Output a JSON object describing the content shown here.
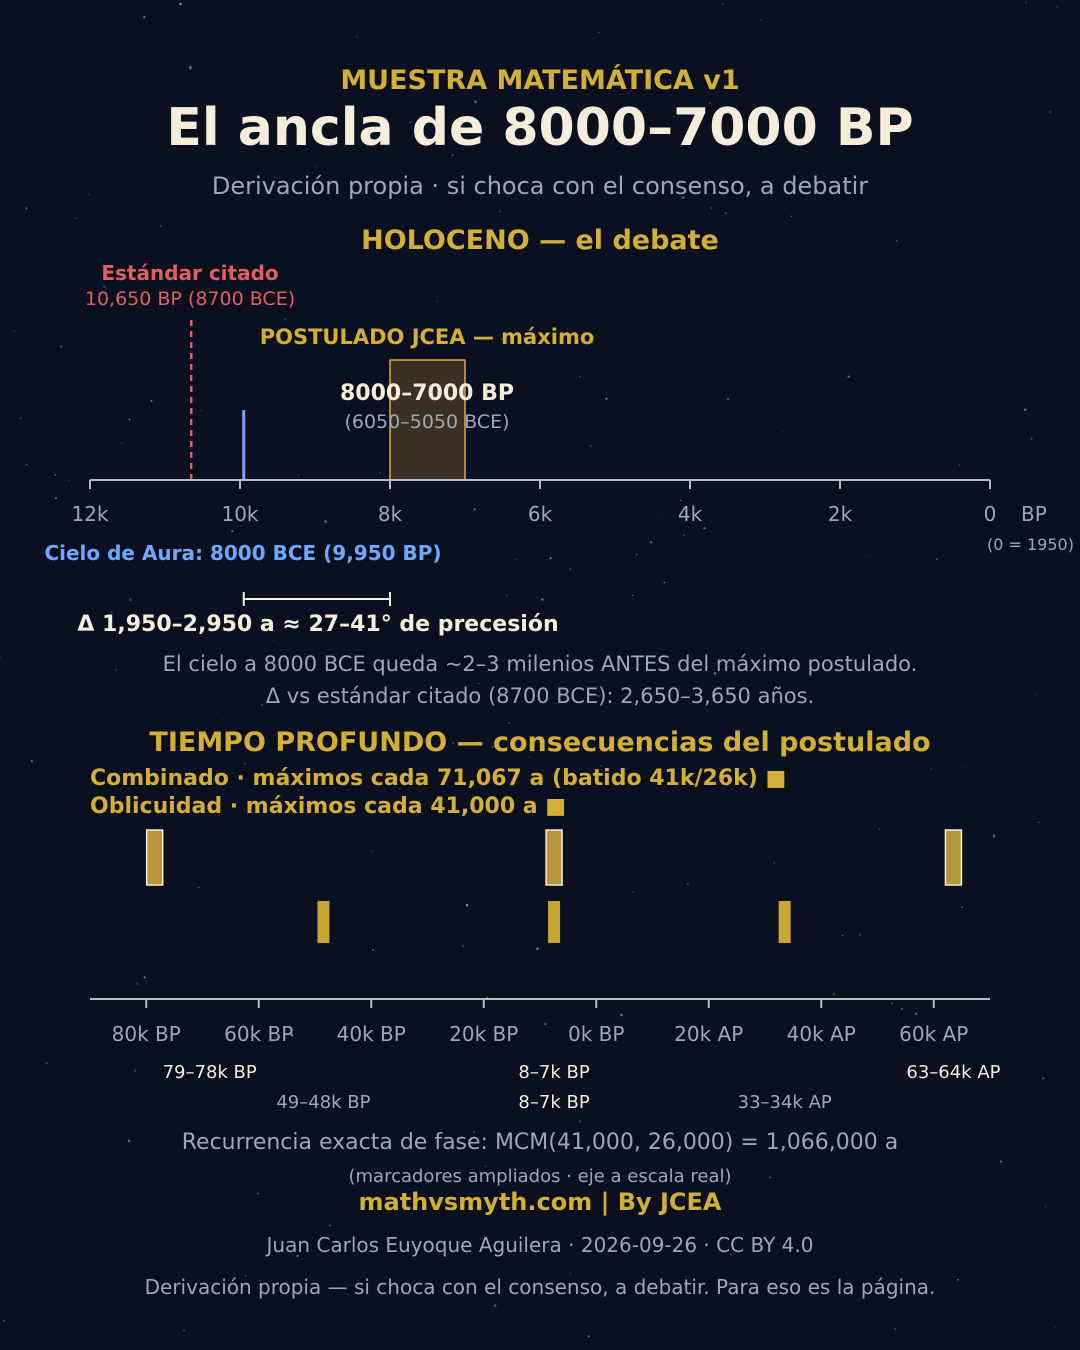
{
  "header": {
    "kicker": "MUESTRA MATEMÁTICA v1",
    "title": "El ancla de 8000–7000 BP",
    "subtitle": "Derivación propia · si choca con el consenso, a debatir"
  },
  "holocene": {
    "heading": "HOLOCENO — el debate",
    "standard_title": "Estándar citado",
    "standard_value": "10,650 BP (8700 BCE)",
    "postulate_title": "POSTULADO JCEA — máximo",
    "postulate_range": "8000–7000 BP",
    "postulate_bce": "(6050–5050 BCE)",
    "axis_ticks": [
      "12k",
      "10k",
      "8k",
      "6k",
      "4k",
      "2k",
      "0"
    ],
    "axis_unit": "BP",
    "axis_note": "(0 = 1950)",
    "aura_label": "Cielo de Aura: 8000 BCE (9,950 BP)",
    "delta_label": "Δ 1,950–2,950 a ≈ 27–41° de precesión",
    "note_line1": "El cielo a 8000 BCE queda ~2–3 milenios ANTES del máximo postulado.",
    "note_line2": "Δ vs estándar citado (8700 BCE): 2,650–3,650 años."
  },
  "deep_time": {
    "heading": "TIEMPO PROFUNDO — consecuencias del postulado",
    "legend_combined": "Combinado · máximos cada 71,067 a (batido 41k/26k) ■",
    "legend_obliquity": "Oblicuidad · máximos cada 41,000 a ■",
    "axis_ticks": [
      "80k BP",
      "60k BP",
      "40k BP",
      "20k BP",
      "0k BP",
      "20k AP",
      "40k AP",
      "60k AP"
    ],
    "combined_labels": [
      "79–78k BP",
      "8–7k BP",
      "63–64k AP"
    ],
    "obliquity_labels": [
      "49–48k BP",
      "8–7k BP",
      "33–34k AP"
    ],
    "recurrence": "Recurrencia exacta de fase: MCM(41,000, 26,000) = 1,066,000 a",
    "scale_note": "(marcadores ampliados · eje a escala real)"
  },
  "footer": {
    "site": "mathvsmyth.com | By JCEA",
    "credit": "Juan Carlos Euyoque Aguilera · 2026-09-26 · CC BY 4.0",
    "closing": "Derivación propia — si choca con el consenso, a debatir. Para eso es la página."
  },
  "chart_data": [
    {
      "type": "timeline",
      "axis_unit": "years BP",
      "xlim": [
        12000,
        0
      ],
      "ticks": [
        12000,
        10000,
        8000,
        6000,
        4000,
        2000,
        0
      ],
      "markers": [
        {
          "label": "Estándar citado",
          "value": 10650
        },
        {
          "label": "Cielo de Aura",
          "value": 9950
        }
      ],
      "ranges": [
        {
          "label": "POSTULADO JCEA — máximo",
          "from": 8000,
          "to": 7000
        }
      ],
      "delta_range": {
        "from": 9950,
        "to": 8000
      }
    },
    {
      "type": "timeline",
      "axis_unit": "years (negative = BP, positive = AP)",
      "xlim": [
        -90000,
        70000
      ],
      "ticks": [
        -80000,
        -60000,
        -40000,
        -20000,
        0,
        20000,
        40000,
        60000
      ],
      "series": [
        {
          "name": "Combinado",
          "ranges": [
            [
              -79000,
              -78000
            ],
            [
              -8000,
              -7000
            ],
            [
              63000,
              64000
            ]
          ]
        },
        {
          "name": "Oblicuidad",
          "ranges": [
            [
              -49000,
              -48000
            ],
            [
              -8000,
              -7000
            ],
            [
              33000,
              34000
            ]
          ]
        }
      ]
    }
  ],
  "colors": {
    "gold": "#d4af37",
    "red": "#e06060",
    "blue": "#6ea8ff",
    "cream": "#f5ecd9",
    "gray": "#a0a6b5",
    "axis": "#b8bcc8",
    "background": "#0b1020"
  }
}
